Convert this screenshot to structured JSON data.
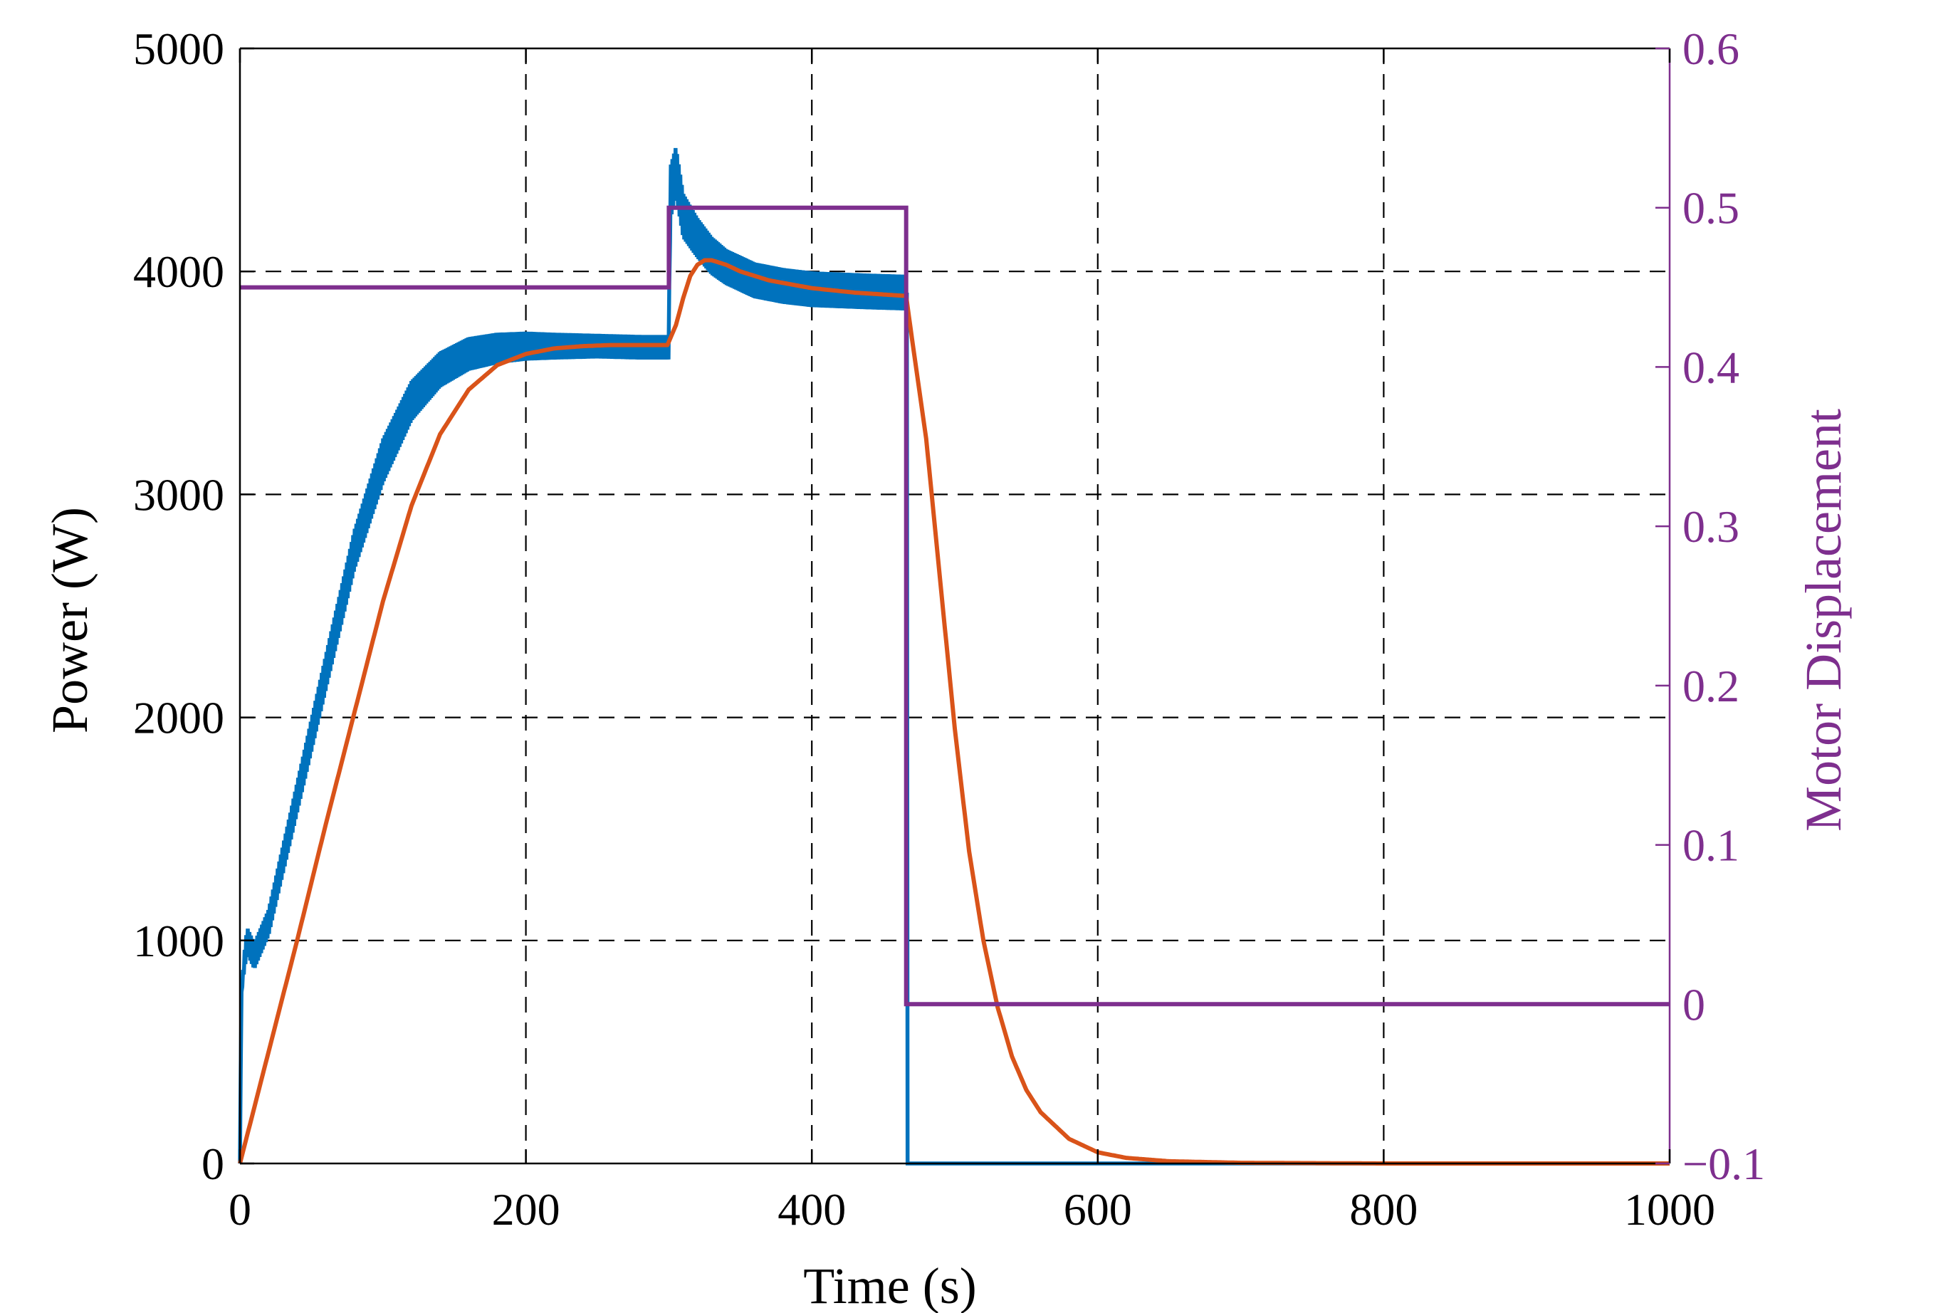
{
  "chart_data": {
    "type": "line",
    "title": "",
    "xlabel": "Time (s)",
    "ylabel": "Power (W)",
    "y2label": "Motor Displacement",
    "xlim": [
      0,
      1000
    ],
    "ylim": [
      0,
      5000
    ],
    "y2lim": [
      -0.1,
      0.6
    ],
    "x_ticks": [
      0,
      200,
      400,
      600,
      800,
      1000
    ],
    "y_ticks": [
      0,
      1000,
      2000,
      3000,
      4000,
      5000
    ],
    "y2_ticks": [
      -0.1,
      0,
      0.1,
      0.2,
      0.3,
      0.4,
      0.5,
      0.6
    ],
    "x_tick_labels": [
      "0",
      "200",
      "400",
      "600",
      "800",
      "1000"
    ],
    "y_tick_labels": [
      "0",
      "1000",
      "2000",
      "3000",
      "4000",
      "5000"
    ],
    "y2_tick_labels": [
      "−0.1",
      "0",
      "0.1",
      "0.2",
      "0.3",
      "0.4",
      "0.5",
      "0.6"
    ],
    "grid": true,
    "legend": "none",
    "colors": {
      "series_blue": "#0072BD",
      "series_orange": "#D95319",
      "series_purple": "#7E2F8E",
      "axis_left": "#000000",
      "axis_right": "#7E2F8E",
      "grid": "#000000"
    },
    "series": [
      {
        "axis": "left",
        "color": "#0072BD",
        "style": "oscillating",
        "x": [
          0,
          1,
          3,
          5,
          10,
          20,
          40,
          60,
          80,
          100,
          120,
          140,
          160,
          180,
          200,
          220,
          250,
          280,
          299,
          300,
          301,
          305,
          310,
          320,
          330,
          340,
          360,
          380,
          400,
          420,
          440,
          466,
          467,
          470,
          500,
          600,
          800,
          1000
        ],
        "y": [
          0,
          760,
          900,
          1000,
          930,
          1080,
          1640,
          2200,
          2750,
          3150,
          3420,
          3560,
          3630,
          3655,
          3665,
          3665,
          3665,
          3660,
          3660,
          3660,
          4350,
          4450,
          4250,
          4150,
          4070,
          4020,
          3960,
          3935,
          3920,
          3915,
          3910,
          3905,
          0,
          0,
          0,
          0,
          0,
          0
        ],
        "band": [
          0,
          0,
          40,
          60,
          60,
          60,
          70,
          80,
          90,
          100,
          90,
          80,
          75,
          70,
          65,
          60,
          55,
          55,
          55,
          55,
          120,
          110,
          100,
          90,
          85,
          80,
          80,
          80,
          80,
          80,
          80,
          80,
          0,
          0,
          0,
          0,
          0,
          0
        ]
      },
      {
        "axis": "left",
        "color": "#D95319",
        "style": "smooth",
        "x": [
          0,
          20,
          40,
          60,
          80,
          100,
          120,
          140,
          160,
          180,
          200,
          220,
          240,
          260,
          280,
          299,
          305,
          310,
          315,
          320,
          325,
          330,
          340,
          350,
          370,
          400,
          430,
          466,
          470,
          480,
          490,
          500,
          510,
          520,
          530,
          540,
          550,
          560,
          580,
          600,
          620,
          650,
          700,
          800,
          1000
        ],
        "y": [
          0,
          500,
          1000,
          1520,
          2020,
          2520,
          2950,
          3270,
          3470,
          3580,
          3630,
          3655,
          3665,
          3670,
          3670,
          3670,
          3760,
          3880,
          3980,
          4030,
          4050,
          4050,
          4030,
          4000,
          3960,
          3925,
          3905,
          3890,
          3700,
          3250,
          2600,
          1950,
          1400,
          1000,
          700,
          480,
          330,
          230,
          110,
          50,
          25,
          10,
          3,
          0,
          0
        ]
      },
      {
        "axis": "right",
        "color": "#7E2F8E",
        "style": "step",
        "x": [
          0,
          300,
          300,
          466,
          466,
          1000
        ],
        "y": [
          0.45,
          0.45,
          0.5,
          0.5,
          0.0,
          0.0
        ]
      }
    ]
  }
}
